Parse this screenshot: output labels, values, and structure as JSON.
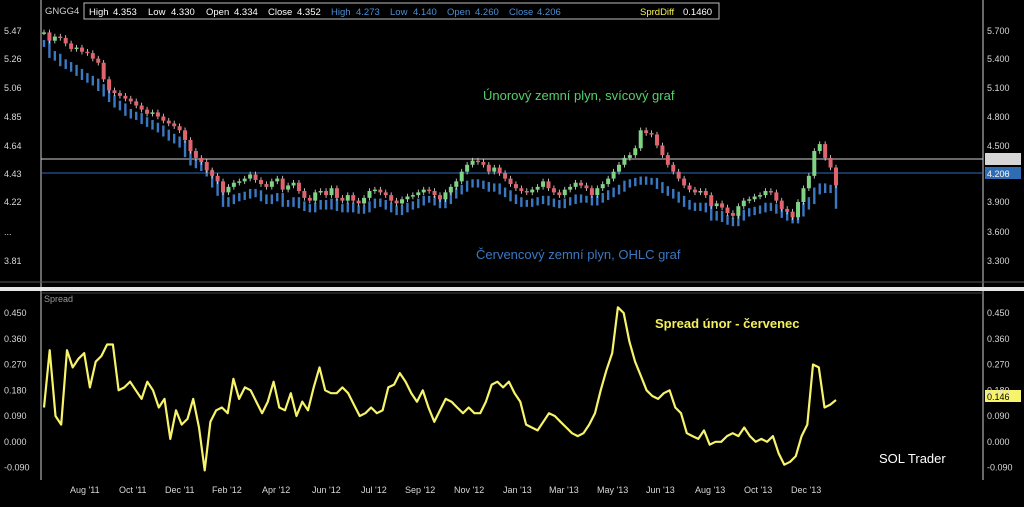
{
  "header": {
    "symbol": "GNGG4",
    "front": {
      "high_label": "High",
      "high": "4.353",
      "low_label": "Low",
      "low": "4.330",
      "open_label": "Open",
      "open": "4.334",
      "close_label": "Close",
      "close": "4.352"
    },
    "second": {
      "high_label": "High",
      "high": "4.273",
      "low_label": "Low",
      "low": "4.140",
      "open_label": "Open",
      "open": "4.260",
      "close_label": "Close",
      "close": "4.206"
    },
    "spread_label": "SprdDiff",
    "spread_value": "0.1460"
  },
  "colors": {
    "background": "#000000",
    "up_candle": "#7ed483",
    "down_candle": "#e0636e",
    "ohlc": "#3a78c2",
    "spread_line": "#f7f36a",
    "grid_line": "#cfcfcf",
    "blue_line": "#2e6db4",
    "label_green": "#53d06c",
    "label_blue": "#3b78c0"
  },
  "annotations": {
    "feb_gas": "Únorový zemní plyn, svícový graf",
    "jul_gas": "Červencový zemní plyn, OHLC graf",
    "spread": "Spread únor - červenec",
    "author": "SOL Trader"
  },
  "price_panel": {
    "left_ticks": [
      "5.47",
      "5.26",
      "5.06",
      "4.85",
      "4.64",
      "4.43",
      "4.22",
      "...",
      "3.81"
    ],
    "right_ticks": [
      "5.700",
      "5.400",
      "5.100",
      "4.800",
      "4.500",
      "4.200",
      "3.900",
      "3.600",
      "3.300"
    ],
    "last_price_badge": "4.206"
  },
  "spread_panel": {
    "title": "Spread",
    "left_ticks": [
      "0.450",
      "0.360",
      "0.270",
      "0.180",
      "0.090",
      "0.000",
      "-0.090"
    ],
    "right_ticks": [
      "0.450",
      "0.360",
      "0.270",
      "0.180",
      "0.090",
      "0.000",
      "-0.090"
    ],
    "last_value_badge": "0.146"
  },
  "x_axis_labels": [
    "Aug '11",
    "Oct '11",
    "Dec '11",
    "Feb '12",
    "Apr '12",
    "Jun '12",
    "Jul '12",
    "Sep '12",
    "Nov '12",
    "Jan '13",
    "Mar '13",
    "May '13",
    "Jun '13",
    "Aug '13",
    "Oct '13",
    "Dec '13"
  ],
  "chart_data": [
    {
      "type": "line",
      "title": "Spread",
      "series": [
        {
          "values": [
            0.12,
            0.32,
            0.09,
            0.06,
            0.32,
            0.26,
            0.29,
            0.31,
            0.19,
            0.28,
            0.3,
            0.34,
            0.34,
            0.18,
            0.19,
            0.21,
            0.18,
            0.15,
            0.21,
            0.18,
            0.12,
            0.15,
            0.01,
            0.11,
            0.06,
            0.08,
            0.15,
            0.05,
            -0.1,
            0.07,
            0.11,
            0.12,
            0.1,
            0.22,
            0.15,
            0.19,
            0.18,
            0.14,
            0.1,
            0.14,
            0.21,
            0.12,
            0.11,
            0.17,
            0.09,
            0.14,
            0.11,
            0.19,
            0.26,
            0.18,
            0.17,
            0.17,
            0.19,
            0.17,
            0.13,
            0.09,
            0.1,
            0.12,
            0.1,
            0.11,
            0.19,
            0.2,
            0.24,
            0.21,
            0.17,
            0.14,
            0.18,
            0.12,
            0.07,
            0.11,
            0.15,
            0.14,
            0.12,
            0.1,
            0.12,
            0.1,
            0.1,
            0.14,
            0.2,
            0.21,
            0.19,
            0.21,
            0.17,
            0.14,
            0.06,
            0.05,
            0.04,
            0.07,
            0.1,
            0.09,
            0.07,
            0.05,
            0.03,
            0.02,
            0.03,
            0.06,
            0.1,
            0.18,
            0.25,
            0.31,
            0.47,
            0.45,
            0.35,
            0.28,
            0.23,
            0.18,
            0.16,
            0.15,
            0.17,
            0.18,
            0.12,
            0.1,
            0.03,
            0.02,
            0.01,
            0.04,
            -0.01,
            0,
            0,
            0.02,
            0.03,
            0.02,
            0.05,
            0.02,
            0,
            0.01,
            0,
            0.02,
            -0.04,
            -0.08,
            -0.07,
            -0.05,
            0.02,
            0.06,
            0.27,
            0.26,
            0.12,
            0.13,
            0.146
          ]
        }
      ],
      "ylim": [
        -0.13,
        0.52
      ],
      "yticks": [
        -0.09,
        0,
        0.09,
        0.18,
        0.27,
        0.36,
        0.45
      ]
    },
    {
      "type": "candlestick",
      "name": "GNGG4",
      "series": [
        {
          "values": [
            5.46,
            5.4,
            5.43,
            5.42,
            5.38,
            5.34,
            5.35,
            5.32,
            5.31,
            5.27,
            5.24,
            5.12,
            5.04,
            5.02,
            5.0,
            4.98,
            4.96,
            4.93,
            4.9,
            4.87,
            4.88,
            4.85,
            4.82,
            4.8,
            4.78,
            4.75,
            4.68,
            4.6,
            4.55,
            4.52,
            4.46,
            4.42,
            4.38,
            4.3,
            4.34,
            4.37,
            4.38,
            4.4,
            4.43,
            4.39,
            4.36,
            4.34,
            4.38,
            4.4,
            4.32,
            4.35,
            4.37,
            4.31,
            4.26,
            4.24,
            4.3,
            4.31,
            4.28,
            4.33,
            4.26,
            4.24,
            4.28,
            4.24,
            4.22,
            4.26,
            4.31,
            4.32,
            4.3,
            4.28,
            4.24,
            4.22,
            4.25,
            4.27,
            4.28,
            4.3,
            4.32,
            4.31,
            4.28,
            4.25,
            4.3,
            4.34,
            4.38,
            4.45,
            4.5,
            4.53,
            4.52,
            4.5,
            4.45,
            4.48,
            4.44,
            4.4,
            4.36,
            4.33,
            4.31,
            4.3,
            4.32,
            4.34,
            4.38,
            4.33,
            4.3,
            4.28,
            4.32,
            4.34,
            4.37,
            4.35,
            4.33,
            4.28,
            4.33,
            4.36,
            4.4,
            4.45,
            4.5,
            4.55,
            4.57,
            4.62,
            4.75,
            4.73,
            4.72,
            4.64,
            4.57,
            4.5,
            4.45,
            4.4,
            4.35,
            4.32,
            4.3,
            4.31,
            4.28,
            4.2,
            4.22,
            4.19,
            4.15,
            4.13,
            4.2,
            4.24,
            4.25,
            4.27,
            4.28,
            4.31,
            4.3,
            4.24,
            4.18,
            4.16,
            4.12,
            4.23,
            4.33,
            4.42,
            4.6,
            4.65,
            4.55,
            4.48,
            4.352
          ]
        }
      ],
      "ylim": [
        3.65,
        5.55
      ]
    },
    {
      "type": "line",
      "name": "July natural gas (OHLC)",
      "series": [
        {
          "values": [
            5.38,
            5.3,
            5.28,
            5.24,
            5.22,
            5.2,
            5.17,
            5.14,
            5.12,
            5.1,
            5.06,
            5.02,
            4.98,
            4.94,
            4.92,
            4.88,
            4.86,
            4.85,
            4.82,
            4.8,
            4.78,
            4.76,
            4.73,
            4.7,
            4.68,
            4.65,
            4.58,
            4.52,
            4.5,
            4.48,
            4.44,
            4.36,
            4.3,
            4.22,
            4.24,
            4.26,
            4.27,
            4.28,
            4.3,
            4.29,
            4.26,
            4.24,
            4.26,
            4.27,
            4.22,
            4.22,
            4.24,
            4.21,
            4.19,
            4.18,
            4.2,
            4.22,
            4.2,
            4.23,
            4.19,
            4.18,
            4.2,
            4.18,
            4.17,
            4.18,
            4.21,
            4.23,
            4.22,
            4.2,
            4.18,
            4.16,
            4.18,
            4.2,
            4.21,
            4.23,
            4.25,
            4.25,
            4.23,
            4.21,
            4.24,
            4.28,
            4.31,
            4.33,
            4.36,
            4.37,
            4.36,
            4.35,
            4.33,
            4.34,
            4.31,
            4.29,
            4.26,
            4.24,
            4.22,
            4.22,
            4.23,
            4.24,
            4.25,
            4.23,
            4.22,
            4.21,
            4.23,
            4.24,
            4.26,
            4.25,
            4.25,
            4.23,
            4.25,
            4.27,
            4.29,
            4.31,
            4.33,
            4.36,
            4.37,
            4.38,
            4.39,
            4.38,
            4.38,
            4.35,
            4.32,
            4.3,
            4.28,
            4.25,
            4.22,
            4.2,
            4.19,
            4.2,
            4.18,
            4.12,
            4.14,
            4.11,
            4.09,
            4.08,
            4.12,
            4.15,
            4.16,
            4.17,
            4.18,
            4.2,
            4.19,
            4.17,
            4.14,
            4.12,
            4.1,
            4.15,
            4.2,
            4.24,
            4.31,
            4.34,
            4.32,
            4.33,
            4.206
          ]
        }
      ],
      "ylim": [
        3.65,
        5.55
      ]
    }
  ]
}
